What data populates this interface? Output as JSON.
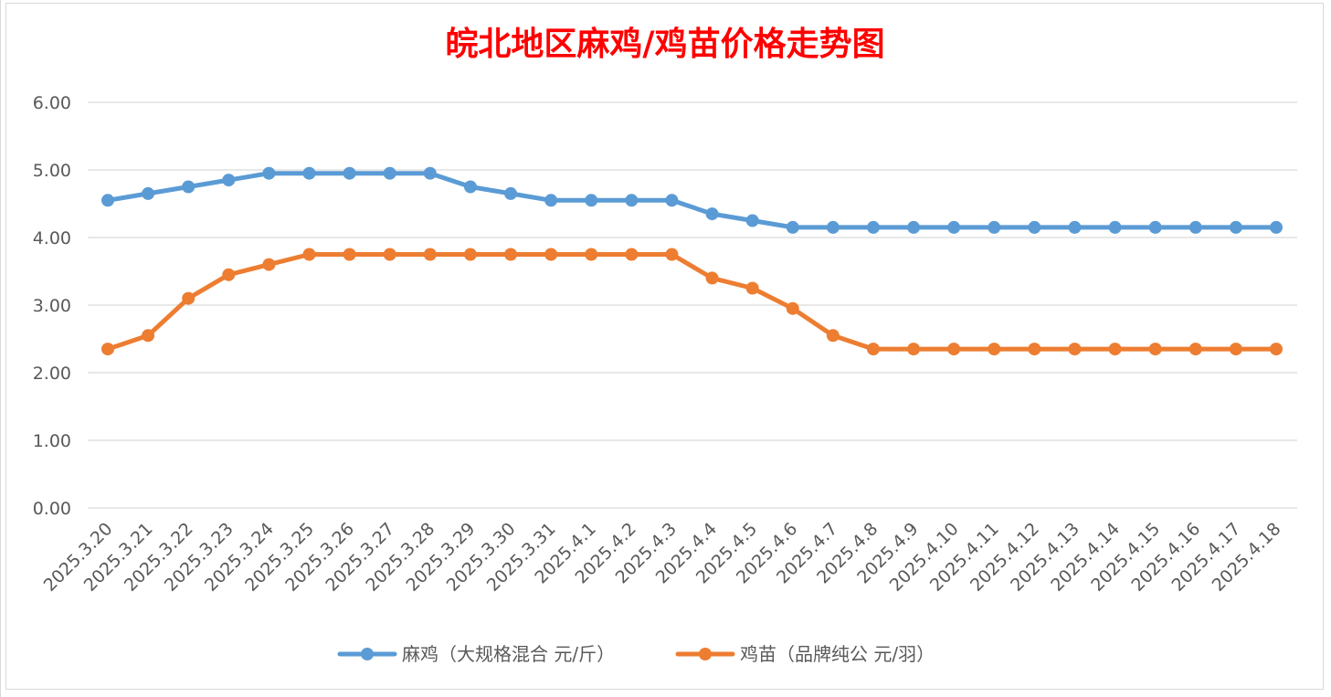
{
  "chart_data": {
    "type": "line",
    "title": "皖北地区麻鸡/鸡苗价格走势图",
    "xlabel": "",
    "ylabel": "",
    "ylim": [
      0,
      6
    ],
    "y_ticks": [
      "0.00",
      "1.00",
      "2.00",
      "3.00",
      "4.00",
      "5.00",
      "6.00"
    ],
    "grid": true,
    "legend_position": "bottom",
    "categories": [
      "2025.3.20",
      "2025.3.21",
      "2025.3.22",
      "2025.3.23",
      "2025.3.24",
      "2025.3.25",
      "2025.3.26",
      "2025.3.27",
      "2025.3.28",
      "2025.3.29",
      "2025.3.30",
      "2025.3.31",
      "2025.4.1",
      "2025.4.2",
      "2025.4.3",
      "2025.4.4",
      "2025.4.5",
      "2025.4.6",
      "2025.4.7",
      "2025.4.8",
      "2025.4.9",
      "2025.4.10",
      "2025.4.11",
      "2025.4.12",
      "2025.4.13",
      "2025.4.14",
      "2025.4.15",
      "2025.4.16",
      "2025.4.17",
      "2025.4.18"
    ],
    "series": [
      {
        "name": "麻鸡（大规格混合 元/斤）",
        "color": "#5b9bd5",
        "values": [
          4.55,
          4.65,
          4.75,
          4.85,
          4.95,
          4.95,
          4.95,
          4.95,
          4.95,
          4.75,
          4.65,
          4.55,
          4.55,
          4.55,
          4.55,
          4.35,
          4.25,
          4.15,
          4.15,
          4.15,
          4.15,
          4.15,
          4.15,
          4.15,
          4.15,
          4.15,
          4.15,
          4.15,
          4.15,
          4.15
        ]
      },
      {
        "name": "鸡苗（品牌纯公 元/羽）",
        "color": "#ed7d31",
        "values": [
          2.35,
          2.55,
          3.1,
          3.45,
          3.6,
          3.75,
          3.75,
          3.75,
          3.75,
          3.75,
          3.75,
          3.75,
          3.75,
          3.75,
          3.75,
          3.4,
          3.25,
          2.95,
          2.55,
          2.35,
          2.35,
          2.35,
          2.35,
          2.35,
          2.35,
          2.35,
          2.35,
          2.35,
          2.35,
          2.35
        ]
      }
    ]
  }
}
